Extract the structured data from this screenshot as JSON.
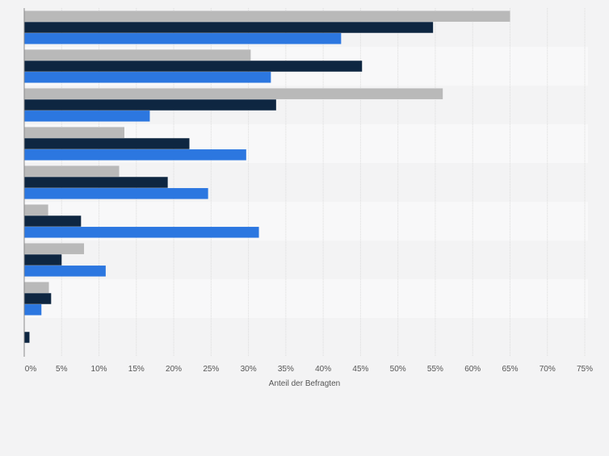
{
  "chart_data": {
    "type": "bar",
    "orientation": "horizontal",
    "categories": [
      "",
      "",
      "",
      "",
      "",
      "",
      "",
      "",
      ""
    ],
    "series": [
      {
        "color": "#b9b9b9",
        "values": [
          65,
          30.3,
          56,
          13.4,
          12.7,
          3.2,
          8,
          3.3,
          null
        ]
      },
      {
        "color": "#0e2641",
        "values": [
          54.7,
          45.2,
          33.7,
          22.1,
          19.2,
          7.6,
          5,
          3.6,
          0.7
        ]
      },
      {
        "color": "#2c77e0",
        "values": [
          42.4,
          33,
          16.8,
          29.7,
          24.6,
          31.4,
          10.9,
          2.3,
          null
        ]
      }
    ],
    "xlim": [
      0,
      75
    ],
    "xticks": [
      "0%",
      "5%",
      "10%",
      "15%",
      "20%",
      "25%",
      "30%",
      "35%",
      "40%",
      "45%",
      "50%",
      "55%",
      "60%",
      "65%",
      "70%",
      "75%"
    ],
    "xlabel": "Anteil der Befragten",
    "grid": true
  }
}
